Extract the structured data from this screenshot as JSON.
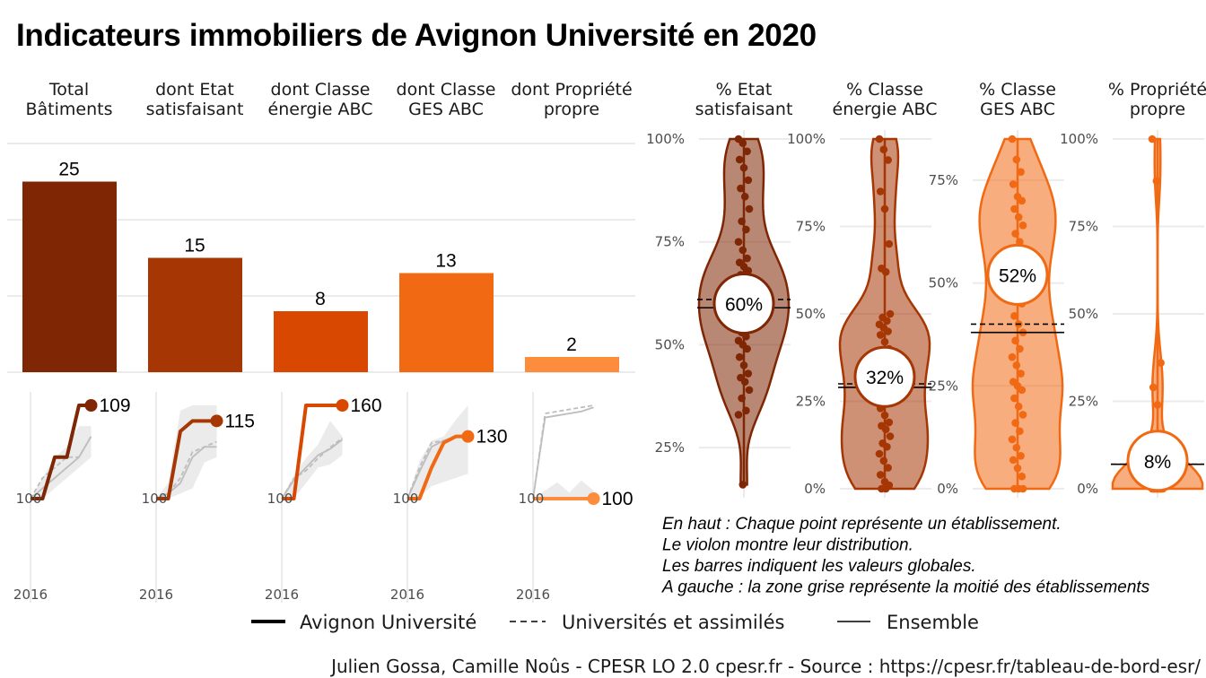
{
  "title": "Indicateurs immobiliers de Avignon Université en 2020",
  "colors": {
    "c1": "#7f2704",
    "c2": "#a63603",
    "c3": "#d94801",
    "c4": "#f16913",
    "c5": "#fd8d3c",
    "grid": "#ebebeb",
    "band": "#ebebeb"
  },
  "chart_data": [
    {
      "type": "bar",
      "categories": [
        "Total\nBâtiments",
        "dont Etat\nsatisfaisant",
        "dont Classe\nénergie ABC",
        "dont Classe\nGES ABC",
        "dont Propriété\npropre"
      ],
      "values": [
        25,
        15,
        8,
        13,
        2
      ],
      "ylim": [
        0,
        30
      ]
    },
    {
      "type": "line",
      "x_tick_label": "2016",
      "base_label": "100",
      "panels": [
        {
          "series": [
            {
              "name": "Avignon Université",
              "values": [
                100,
                100,
                104,
                104,
                109,
                109
              ]
            },
            {
              "name": "Universités et assimilés",
              "values": [
                100,
                102,
                103,
                104,
                104,
                106
              ]
            },
            {
              "name": "Ensemble",
              "values": [
                100,
                101,
                102,
                103,
                104,
                106
              ]
            }
          ],
          "band": {
            "low": [
              100,
              100,
              101,
              102,
              103,
              104
            ],
            "high": [
              100,
              102,
              104,
              105,
              107,
              107
            ]
          },
          "end_label": "109"
        },
        {
          "series": [
            {
              "name": "Avignon Université",
              "values": [
                100,
                100,
                113,
                115,
                115,
                115
              ]
            },
            {
              "name": "Universités et assimilés",
              "values": [
                100,
                101,
                104,
                109,
                110,
                111
              ]
            },
            {
              "name": "Ensemble",
              "values": [
                100,
                101,
                103,
                108,
                110,
                110
              ]
            }
          ],
          "band": {
            "low": [
              100,
              100,
              101,
              102,
              107,
              108
            ],
            "high": [
              100,
              103,
              117,
              118,
              118,
              118
            ]
          },
          "end_label": "115"
        },
        {
          "series": [
            {
              "name": "Avignon Université",
              "values": [
                100,
                100,
                160,
                160,
                160,
                160
              ]
            },
            {
              "name": "Universités et assimilés",
              "values": [
                100,
                113,
                118,
                126,
                133,
                139
              ]
            },
            {
              "name": "Ensemble",
              "values": [
                100,
                112,
                120,
                128,
                132,
                138
              ]
            }
          ],
          "band": {
            "low": [
              100,
              100,
              110,
              120,
              122,
              128
            ],
            "high": [
              100,
              115,
              126,
              135,
              150,
              140
            ]
          },
          "end_label": "160"
        },
        {
          "series": [
            {
              "name": "Avignon Université",
              "values": [
                100,
                100,
                115,
                127,
                130,
                130
              ]
            },
            {
              "name": "Universités et assimilés",
              "values": [
                100,
                115,
                127,
                128,
                130,
                130
              ]
            },
            {
              "name": "Ensemble",
              "values": [
                100,
                113,
                125,
                128,
                130,
                131
              ]
            }
          ],
          "band": {
            "low": [
              100,
              101,
              106,
              108,
              110,
              112
            ],
            "high": [
              100,
              118,
              128,
              130,
              138,
              145
            ]
          },
          "end_label": "130"
        },
        {
          "series": [
            {
              "name": "Avignon Université",
              "values": [
                100,
                100,
                100,
                100,
                100,
                100
              ]
            },
            {
              "name": "Universités et assimilés",
              "values": [
                100,
                142,
                143,
                144,
                145,
                146
              ]
            },
            {
              "name": "Ensemble",
              "values": [
                100,
                140,
                141,
                142,
                143,
                145
              ]
            }
          ],
          "band": {
            "low": [
              100,
              100,
              100,
              100,
              100,
              100
            ],
            "high": [
              100,
              104,
              108,
              103,
              109,
              104
            ]
          },
          "end_label": "100"
        }
      ]
    },
    {
      "type": "violin",
      "panels": [
        {
          "title": "% Etat\nsatisfaisant",
          "ylim": [
            0.15,
            1.0
          ],
          "ticks": [
            0.25,
            0.5,
            0.75,
            1.0
          ],
          "tick_labels": [
            "25%",
            "50%",
            "75%",
            "100%"
          ],
          "value": 0.6,
          "value_label": "60%",
          "reference_univ": 0.61,
          "reference_all": 0.59,
          "points": [
            1.0,
            0.99,
            0.97,
            0.95,
            0.93,
            0.9,
            0.88,
            0.86,
            0.83,
            0.8,
            0.78,
            0.75,
            0.73,
            0.71,
            0.7,
            0.69,
            0.68,
            0.67,
            0.66,
            0.65,
            0.64,
            0.63,
            0.62,
            0.61,
            0.6,
            0.59,
            0.58,
            0.57,
            0.56,
            0.55,
            0.54,
            0.53,
            0.52,
            0.51,
            0.5,
            0.49,
            0.47,
            0.45,
            0.43,
            0.42,
            0.41,
            0.39,
            0.37,
            0.34,
            0.33,
            0.16
          ]
        },
        {
          "title": "% Classe\nénergie ABC",
          "ylim": [
            0,
            1.0
          ],
          "ticks": [
            0,
            0.25,
            0.5,
            0.75,
            1.0
          ],
          "tick_labels": [
            "0%",
            "25%",
            "50%",
            "75%",
            "100%"
          ],
          "value": 0.32,
          "value_label": "32%",
          "reference_univ": 0.3,
          "reference_all": 0.29,
          "points": [
            1.0,
            0.97,
            0.94,
            0.85,
            0.8,
            0.7,
            0.63,
            0.62,
            0.5,
            0.49,
            0.48,
            0.47,
            0.46,
            0.45,
            0.44,
            0.42,
            0.4,
            0.38,
            0.36,
            0.35,
            0.33,
            0.31,
            0.3,
            0.28,
            0.25,
            0.23,
            0.21,
            0.19,
            0.18,
            0.17,
            0.15,
            0.13,
            0.12,
            0.1,
            0.08,
            0.06,
            0.04,
            0.02,
            0.01,
            0.0,
            0.0
          ]
        },
        {
          "title": "% Classe\nGES ABC",
          "ylim": [
            0,
            0.85
          ],
          "ticks": [
            0,
            0.25,
            0.5,
            0.75
          ],
          "tick_labels": [
            "0%",
            "25%",
            "50%",
            "75%"
          ],
          "value": 0.52,
          "value_label": "52%",
          "reference_univ": 0.4,
          "reference_all": 0.38,
          "points": [
            0.85,
            0.8,
            0.77,
            0.74,
            0.71,
            0.7,
            0.68,
            0.66,
            0.64,
            0.62,
            0.6,
            0.58,
            0.55,
            0.53,
            0.5,
            0.47,
            0.45,
            0.42,
            0.4,
            0.38,
            0.36,
            0.34,
            0.32,
            0.3,
            0.28,
            0.26,
            0.25,
            0.24,
            0.22,
            0.2,
            0.18,
            0.16,
            0.14,
            0.12,
            0.1,
            0.08,
            0.07,
            0.05,
            0.03,
            0.0,
            0.0,
            0.0
          ]
        },
        {
          "title": "% Propriété\npropre",
          "ylim": [
            0,
            1.0
          ],
          "ticks": [
            0,
            0.25,
            0.5,
            0.75,
            1.0
          ],
          "tick_labels": [
            "0%",
            "25%",
            "50%",
            "75%",
            "100%"
          ],
          "value": 0.08,
          "value_label": "8%",
          "reference_univ": 0.07,
          "reference_all": 0.07,
          "points": [
            1.0,
            0.88,
            0.36,
            0.29,
            0.24,
            0.08,
            0.05,
            0.02,
            0.02,
            0.02,
            0.01,
            0.01,
            0.01,
            0.0,
            0.0,
            0.0,
            0.0,
            0.0,
            0.0,
            0.0,
            0.0,
            0.0,
            0.0,
            0.0,
            0.0,
            0.0,
            0.0
          ]
        }
      ]
    }
  ],
  "notes": [
    "En haut : Chaque point représente un établissement.",
    "Le violon montre leur distribution.",
    "Les barres indiquent les valeurs globales.",
    "A gauche : la zone grise représente la moitié des établissements"
  ],
  "legend": [
    "Avignon Université",
    "Universités et assimilés",
    "Ensemble"
  ],
  "caption": "Julien Gossa, Camille Noûs - CPESR LO 2.0 cpesr.fr - Source : https://cpesr.fr/tableau-de-bord-esr/"
}
